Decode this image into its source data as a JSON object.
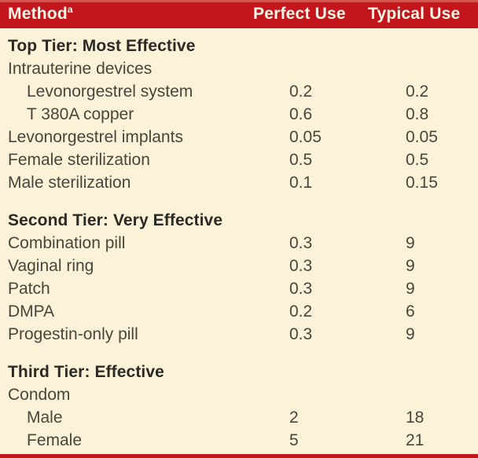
{
  "header": {
    "method": "Method",
    "method_footnote": "a",
    "perfect_use": "Perfect Use",
    "typical_use": "Typical Use"
  },
  "sections": [
    {
      "title": "Top Tier: Most Effective",
      "rows": [
        {
          "label": "Intrauterine devices",
          "indent": 0,
          "perfect": "",
          "typical": ""
        },
        {
          "label": "Levonorgestrel system",
          "indent": 1,
          "perfect": "0.2",
          "typical": "0.2"
        },
        {
          "label": "T 380A copper",
          "indent": 1,
          "perfect": "0.6",
          "typical": "0.8"
        },
        {
          "label": "Levonorgestrel implants",
          "indent": 0,
          "perfect": "0.05",
          "typical": "0.05"
        },
        {
          "label": "Female sterilization",
          "indent": 0,
          "perfect": "0.5",
          "typical": "0.5"
        },
        {
          "label": "Male sterilization",
          "indent": 0,
          "perfect": "0.1",
          "typical": "0.15"
        }
      ]
    },
    {
      "title": "Second Tier: Very Effective",
      "rows": [
        {
          "label": "Combination pill",
          "indent": 0,
          "perfect": "0.3",
          "typical": "9"
        },
        {
          "label": "Vaginal ring",
          "indent": 0,
          "perfect": "0.3",
          "typical": "9"
        },
        {
          "label": "Patch",
          "indent": 0,
          "perfect": "0.3",
          "typical": "9"
        },
        {
          "label": "DMPA",
          "indent": 0,
          "perfect": "0.2",
          "typical": "6"
        },
        {
          "label": "Progestin-only pill",
          "indent": 0,
          "perfect": "0.3",
          "typical": "9"
        }
      ]
    },
    {
      "title": "Third Tier: Effective",
      "rows": [
        {
          "label": "Condom",
          "indent": 0,
          "perfect": "",
          "typical": ""
        },
        {
          "label": "Male",
          "indent": 1,
          "perfect": "2",
          "typical": "18"
        },
        {
          "label": "Female",
          "indent": 1,
          "perfect": "5",
          "typical": "21"
        }
      ]
    }
  ],
  "colors": {
    "header_red": "#C3161C",
    "background_cream": "#FBF2D8",
    "body_text": "#4A443B",
    "heading_text": "#2C2A24",
    "header_text": "#FDF7E7"
  }
}
